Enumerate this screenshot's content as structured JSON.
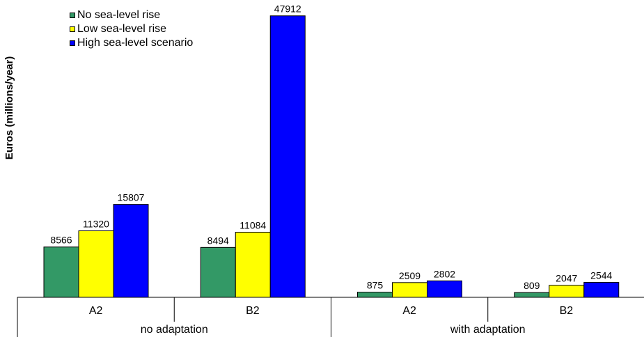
{
  "chart_data": {
    "type": "bar",
    "ylabel": "Euros (millions/year)",
    "groups": [
      {
        "name": "no adaptation",
        "categories": [
          "A2",
          "B2"
        ]
      },
      {
        "name": "with adaptation",
        "categories": [
          "A2",
          "B2"
        ]
      }
    ],
    "series": [
      {
        "name": "No sea-level rise",
        "color": "#339966",
        "values": [
          8566,
          8494,
          875,
          809
        ]
      },
      {
        "name": "Low sea-level rise",
        "color": "#ffff00",
        "values": [
          11320,
          11084,
          2509,
          2047
        ]
      },
      {
        "name": "High sea-level scenario",
        "color": "#0000ff",
        "values": [
          15807,
          47912,
          2802,
          2544
        ]
      }
    ],
    "data_labels": [
      [
        "8566",
        "11320",
        "15807"
      ],
      [
        "8494",
        "11084",
        "47912"
      ],
      [
        "875",
        "2509",
        "2802"
      ],
      [
        "809",
        "2047",
        "2544"
      ]
    ],
    "ylim": [
      0,
      48000
    ],
    "grid": false,
    "legend_position": "top-left"
  }
}
